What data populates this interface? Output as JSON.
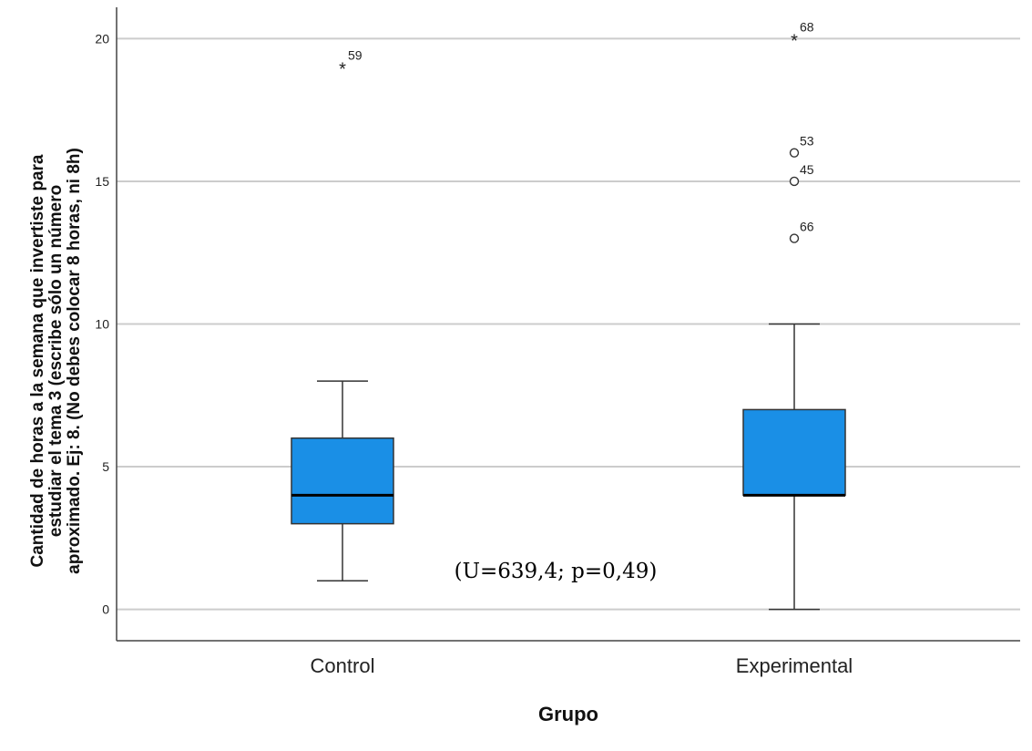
{
  "chart_data": {
    "type": "boxplot",
    "title": "",
    "xlabel": "Grupo",
    "ylabel_lines": [
      "Cantidad de horas a la semana que invertiste para",
      "estudiar el tema 3 (escribe sólo un número",
      "aproximado. Ej: 8. (No debes colocar 8 horas, ni 8h)"
    ],
    "ylim": [
      -1.1,
      21.1
    ],
    "yticks": [
      0,
      5,
      10,
      15,
      20
    ],
    "grid": true,
    "box_color": "#1a8fe6",
    "annotation": "(U=639,4; p=0,49)",
    "groups": [
      {
        "name": "Control",
        "whisker_low": 1,
        "q1": 3,
        "median": 4,
        "q3": 6,
        "whisker_high": 8,
        "outliers": [
          {
            "case": "59",
            "value": 19,
            "marker": "star"
          }
        ]
      },
      {
        "name": "Experimental",
        "whisker_low": 0,
        "q1": 4,
        "median": 4,
        "q3": 7,
        "whisker_high": 10,
        "outliers": [
          {
            "case": "68",
            "value": 20,
            "marker": "star"
          },
          {
            "case": "53",
            "value": 16,
            "marker": "circle"
          },
          {
            "case": "45",
            "value": 15,
            "marker": "circle"
          },
          {
            "case": "66",
            "value": 13,
            "marker": "circle"
          }
        ]
      }
    ]
  }
}
